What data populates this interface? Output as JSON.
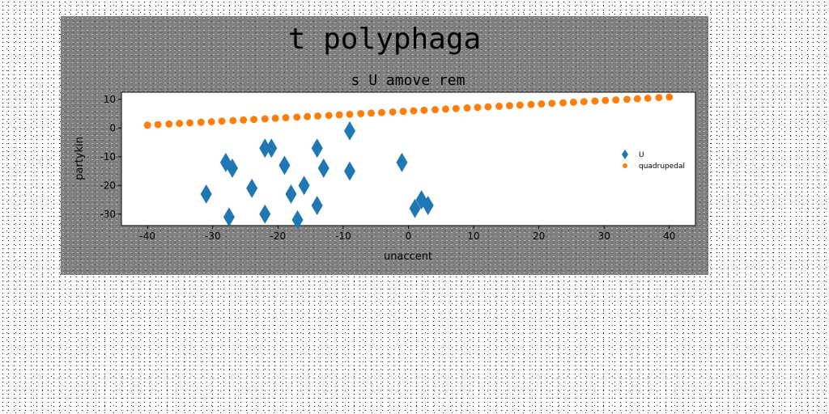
{
  "chart_data": {
    "type": "scatter",
    "suptitle": "t polyphaga",
    "title": "s U amove rem",
    "xlabel": "unaccent",
    "ylabel": "partykin",
    "xlim": [
      -44,
      44
    ],
    "ylim": [
      -34,
      12.5
    ],
    "xticks": [
      -40,
      -30,
      -20,
      -10,
      0,
      10,
      20,
      30,
      40
    ],
    "yticks": [
      -30,
      -20,
      -10,
      0,
      10
    ],
    "grid": false,
    "legend_position": "center-right",
    "series": [
      {
        "name": "U",
        "marker": "thin_diamond",
        "color": "#1f77b4",
        "points": [
          [
            -31,
            -23
          ],
          [
            -28,
            -12
          ],
          [
            -27.5,
            -31
          ],
          [
            -27,
            -14
          ],
          [
            -24,
            -21
          ],
          [
            -22,
            -30
          ],
          [
            -22,
            -7
          ],
          [
            -21,
            -7
          ],
          [
            -19,
            -13
          ],
          [
            -18,
            -23
          ],
          [
            -17,
            -32
          ],
          [
            -16,
            -20
          ],
          [
            -14,
            -27
          ],
          [
            -14,
            -7
          ],
          [
            -13,
            -14
          ],
          [
            -9,
            -1
          ],
          [
            -9,
            -15
          ],
          [
            -1,
            -12
          ],
          [
            1,
            -28
          ],
          [
            2,
            -25
          ],
          [
            3,
            -27
          ]
        ]
      },
      {
        "name": "quadrupedal",
        "marker": "circle",
        "color": "#ff7f0e",
        "points": [
          [
            -40,
            1.0
          ],
          [
            -38.4,
            1.2
          ],
          [
            -36.7,
            1.4
          ],
          [
            -35.1,
            1.6
          ],
          [
            -33.5,
            1.8
          ],
          [
            -31.8,
            2.0
          ],
          [
            -30.2,
            2.2
          ],
          [
            -28.6,
            2.4
          ],
          [
            -26.9,
            2.6
          ],
          [
            -25.3,
            2.8
          ],
          [
            -23.7,
            3.0
          ],
          [
            -22.0,
            3.2
          ],
          [
            -20.4,
            3.4
          ],
          [
            -18.8,
            3.6
          ],
          [
            -17.1,
            3.8
          ],
          [
            -15.5,
            4.0
          ],
          [
            -13.9,
            4.2
          ],
          [
            -12.2,
            4.4
          ],
          [
            -10.6,
            4.6
          ],
          [
            -9.0,
            4.8
          ],
          [
            -7.3,
            5.0
          ],
          [
            -5.7,
            5.2
          ],
          [
            -4.1,
            5.4
          ],
          [
            -2.4,
            5.6
          ],
          [
            -0.8,
            5.8
          ],
          [
            0.8,
            6.0
          ],
          [
            2.4,
            6.2
          ],
          [
            4.1,
            6.4
          ],
          [
            5.7,
            6.6
          ],
          [
            7.3,
            6.8
          ],
          [
            9.0,
            7.0
          ],
          [
            10.6,
            7.2
          ],
          [
            12.2,
            7.4
          ],
          [
            13.9,
            7.6
          ],
          [
            15.5,
            7.8
          ],
          [
            17.1,
            8.0
          ],
          [
            18.8,
            8.2
          ],
          [
            20.4,
            8.4
          ],
          [
            22.0,
            8.6
          ],
          [
            23.7,
            8.8
          ],
          [
            25.3,
            9.0
          ],
          [
            26.9,
            9.2
          ],
          [
            28.6,
            9.4
          ],
          [
            30.2,
            9.6
          ],
          [
            31.8,
            9.8
          ],
          [
            33.5,
            10.0
          ],
          [
            35.1,
            10.2
          ],
          [
            36.7,
            10.4
          ],
          [
            38.4,
            10.6
          ],
          [
            40,
            10.8
          ]
        ]
      }
    ]
  }
}
